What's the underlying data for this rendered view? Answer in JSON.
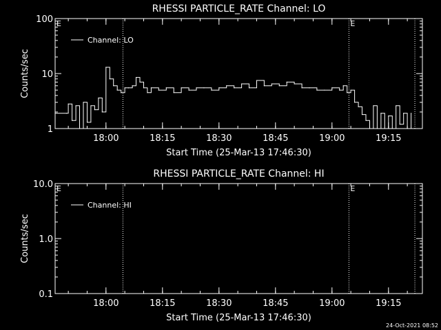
{
  "footer": {
    "timestamp": "24-Oct-2021 08:52"
  },
  "chart_data": [
    {
      "type": "line",
      "title": "RHESSI PARTICLE_RATE Channel: LO",
      "xlabel": "Start Time (25-Mar-13 17:46:30)",
      "ylabel": "Counts/sec",
      "yscale": "log",
      "ylim": [
        1,
        100
      ],
      "xlim": [
        "17:46:30",
        "19:24:00"
      ],
      "yticks": [
        "1",
        "10",
        "100"
      ],
      "xticks": [
        "18:00",
        "18:15",
        "18:30",
        "18:45",
        "19:00",
        "19:15"
      ],
      "legend": {
        "label": "Channel: LO",
        "position": "top-left"
      },
      "markers": [
        {
          "time": "18:04:30",
          "label": ""
        },
        {
          "time": "19:04:30",
          "label": "E"
        },
        {
          "time": "19:22:00",
          "label": ""
        }
      ],
      "corner_label": "E",
      "series": [
        {
          "x": [
            "17:46:30",
            "17:49:30",
            "17:50:00",
            "17:51:00",
            "17:52:00",
            "17:53:00",
            "17:54:00",
            "17:55:00",
            "17:56:00",
            "17:57:00",
            "17:58:00",
            "17:59:00",
            "18:00:00",
            "18:01:00",
            "18:02:00",
            "18:03:00",
            "18:04:00",
            "18:05:00",
            "18:06:00",
            "18:07:00",
            "18:08:00",
            "18:09:00",
            "18:10:00",
            "18:11:00",
            "18:12:00",
            "18:14:00",
            "18:16:00",
            "18:18:00",
            "18:20:00",
            "18:22:00",
            "18:24:00",
            "18:26:00",
            "18:28:00",
            "18:30:00",
            "18:32:00",
            "18:34:00",
            "18:36:00",
            "18:38:00",
            "18:40:00",
            "18:42:00",
            "18:44:00",
            "18:46:00",
            "18:48:00",
            "18:50:00",
            "18:52:00",
            "18:54:00",
            "18:56:00",
            "18:58:00",
            "19:00:00",
            "19:02:00",
            "19:03:00",
            "19:04:00",
            "19:05:00",
            "19:06:00",
            "19:07:00",
            "19:08:00",
            "19:09:00",
            "19:10:00",
            "19:11:00",
            "19:12:00",
            "19:13:00",
            "19:14:00",
            "19:15:00",
            "19:16:00",
            "19:17:00",
            "19:18:00",
            "19:19:00",
            "19:20:00",
            "19:21:00"
          ],
          "y": [
            1.9,
            1.9,
            2.8,
            1.4,
            2.6,
            1.0,
            3.0,
            1.3,
            2.6,
            2.2,
            3.6,
            2.0,
            13.0,
            8.0,
            6.0,
            5.0,
            4.5,
            5.5,
            5.5,
            6.0,
            8.5,
            7.0,
            5.5,
            4.5,
            5.5,
            5.0,
            5.5,
            4.5,
            5.5,
            5.0,
            5.5,
            5.5,
            5.0,
            5.5,
            6.0,
            5.5,
            6.5,
            5.5,
            7.5,
            6.0,
            6.5,
            6.0,
            7.0,
            6.5,
            5.5,
            5.5,
            5.0,
            5.0,
            5.5,
            5.0,
            6.0,
            4.5,
            5.0,
            3.0,
            2.5,
            1.8,
            1.4,
            1.0,
            2.6,
            1.0,
            1.9,
            1.0,
            1.7,
            1.0,
            2.6,
            1.2,
            1.9,
            1.0,
            1.9
          ]
        }
      ]
    },
    {
      "type": "line",
      "title": "RHESSI PARTICLE_RATE Channel: HI",
      "xlabel": "Start Time (25-Mar-13 17:46:30)",
      "ylabel": "Counts/sec",
      "yscale": "log",
      "ylim": [
        0.1,
        10
      ],
      "xlim": [
        "17:46:30",
        "19:24:00"
      ],
      "yticks": [
        "0.1",
        "1.0",
        "10.0"
      ],
      "xticks": [
        "18:00",
        "18:15",
        "18:30",
        "18:45",
        "19:00",
        "19:15"
      ],
      "legend": {
        "label": "Channel: HI",
        "position": "top-left"
      },
      "markers": [
        {
          "time": "18:04:30",
          "label": ""
        },
        {
          "time": "19:04:30",
          "label": "E"
        },
        {
          "time": "19:22:00",
          "label": ""
        }
      ],
      "corner_label": "E",
      "series": [
        {
          "x": [],
          "y": []
        }
      ]
    }
  ]
}
